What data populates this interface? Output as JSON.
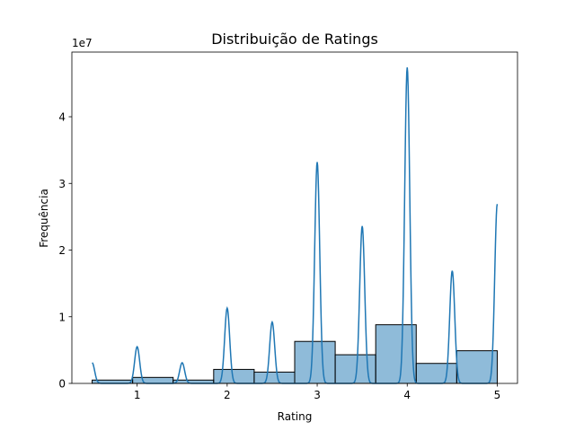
{
  "chart_data": {
    "type": "bar",
    "title": "Distribuição de Ratings",
    "xlabel": "Rating",
    "ylabel": "Frequência",
    "y_offset_label": "1e7",
    "y_multiplier": 10000000,
    "xlim": [
      0.275,
      5.225
    ],
    "ylim": [
      0,
      4.97
    ],
    "xticks": [
      1,
      2,
      3,
      4,
      5
    ],
    "xtick_labels": [
      "1",
      "2",
      "3",
      "4",
      "5"
    ],
    "yticks": [
      0,
      1,
      2,
      3,
      4
    ],
    "ytick_labels": [
      "0",
      "1",
      "2",
      "3",
      "4"
    ],
    "grid": false,
    "legend": "none",
    "histogram": {
      "bar_color": "#1f77b4",
      "bar_opacity": 0.5,
      "edge_color": "#000000",
      "bins": [
        {
          "x0": 0.5,
          "x1": 0.95,
          "value": 0.05
        },
        {
          "x0": 0.95,
          "x1": 1.4,
          "value": 0.09
        },
        {
          "x0": 1.4,
          "x1": 1.85,
          "value": 0.05
        },
        {
          "x0": 1.85,
          "x1": 2.3,
          "value": 0.21
        },
        {
          "x0": 2.3,
          "x1": 2.75,
          "value": 0.17
        },
        {
          "x0": 2.75,
          "x1": 3.2,
          "value": 0.63
        },
        {
          "x0": 3.2,
          "x1": 3.65,
          "value": 0.43
        },
        {
          "x0": 3.65,
          "x1": 4.1,
          "value": 0.88
        },
        {
          "x0": 4.1,
          "x1": 4.55,
          "value": 0.3
        },
        {
          "x0": 4.55,
          "x1": 5.0,
          "value": 0.49
        }
      ]
    },
    "kde": {
      "line_color": "#1f77b4",
      "x_range": [
        0.5,
        5.0
      ],
      "bandwidth": 0.028,
      "peaks": [
        {
          "x": 0.5,
          "height": 0.31
        },
        {
          "x": 1.0,
          "height": 0.55
        },
        {
          "x": 1.5,
          "height": 0.31
        },
        {
          "x": 2.0,
          "height": 1.13
        },
        {
          "x": 2.5,
          "height": 0.92
        },
        {
          "x": 3.0,
          "height": 3.32
        },
        {
          "x": 3.5,
          "height": 2.36
        },
        {
          "x": 4.0,
          "height": 4.74
        },
        {
          "x": 4.5,
          "height": 1.69
        },
        {
          "x": 5.0,
          "height": 2.69
        }
      ]
    }
  }
}
